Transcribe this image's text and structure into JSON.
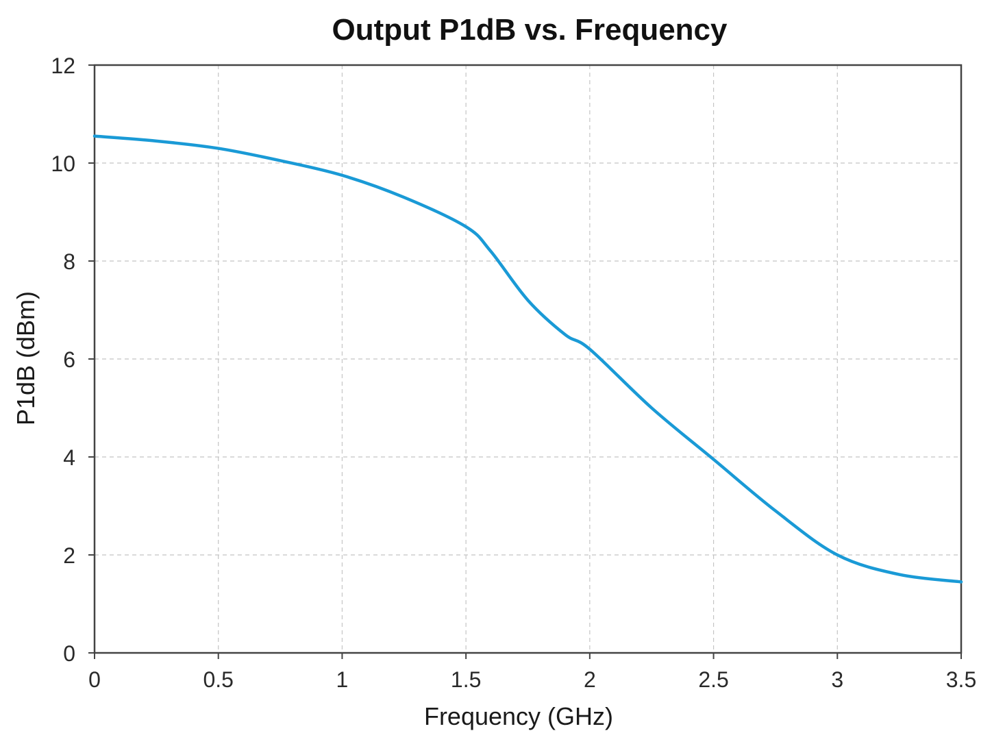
{
  "colors": {
    "series": "#1a9ad6",
    "grid": "#c4c4c4",
    "frame": "#444444"
  },
  "chart_data": {
    "type": "line",
    "title": "Output P1dB vs. Frequency",
    "xlabel": "Frequency (GHz)",
    "ylabel": "P1dB (dBm)",
    "xlim": [
      0,
      3.5
    ],
    "ylim": [
      0,
      12
    ],
    "xticks": [
      0,
      0.5,
      1,
      1.5,
      2,
      2.5,
      3,
      3.5
    ],
    "xtick_labels": [
      "0",
      "0.5",
      "1",
      "1.5",
      "2",
      "2.5",
      "3",
      "3.5"
    ],
    "yticks": [
      0,
      2,
      4,
      6,
      8,
      10,
      12
    ],
    "ytick_labels": [
      "0",
      "2",
      "4",
      "6",
      "8",
      "10",
      "12"
    ],
    "grid": true,
    "legend": "none",
    "series": [
      {
        "x": [
          0,
          0.25,
          0.5,
          0.75,
          1.0,
          1.25,
          1.5,
          1.6,
          1.75,
          1.9,
          2.0,
          2.25,
          2.5,
          2.75,
          3.0,
          3.25,
          3.5
        ],
        "y": [
          10.55,
          10.45,
          10.3,
          10.05,
          9.75,
          9.3,
          8.7,
          8.2,
          7.2,
          6.5,
          6.2,
          5.0,
          3.95,
          2.9,
          2.0,
          1.6,
          1.45
        ]
      }
    ]
  }
}
